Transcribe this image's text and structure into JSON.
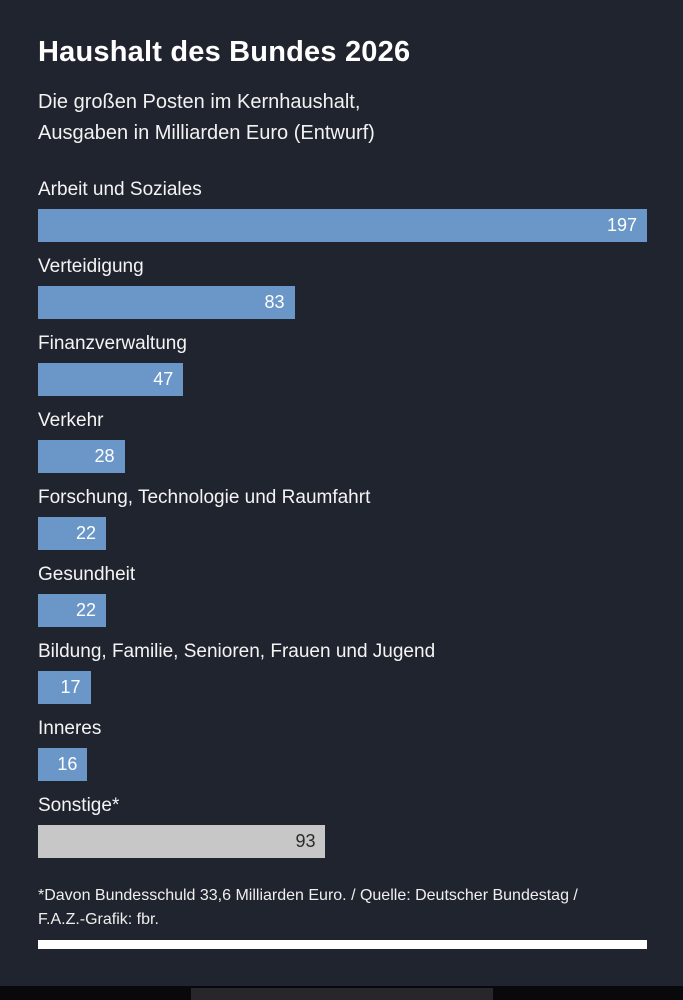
{
  "colors": {
    "background": "#20242e",
    "bar_blue": "#6a96c8",
    "bar_gray": "#c7c7c7",
    "value_on_blue": "#ffffff",
    "value_on_gray": "#2b2b2b",
    "text": "#f4f4f4",
    "bottom_strip": "#ffffff"
  },
  "chart_data": {
    "type": "bar",
    "orientation": "horizontal",
    "title": "Haushalt des Bundes 2026",
    "subtitle_lines": [
      "Die großen Posten im Kernhaushalt,",
      "Ausgaben in Milliarden Euro (Entwurf)"
    ],
    "categories": [
      "Arbeit und Soziales",
      "Verteidigung",
      "Finanzverwaltung",
      "Verkehr",
      "Forschung, Technologie und Raumfahrt",
      "Gesundheit",
      "Bildung, Familie, Senioren, Frauen und Jugend",
      "Inneres",
      "Sonstige*"
    ],
    "values": [
      197,
      83,
      47,
      28,
      22,
      22,
      17,
      16,
      93
    ],
    "bar_color_keys": [
      "blue",
      "blue",
      "blue",
      "blue",
      "blue",
      "blue",
      "blue",
      "blue",
      "gray"
    ],
    "xlim": [
      0,
      197
    ],
    "grid": false,
    "legend": "none",
    "footnote": "*Davon Bundesschuld 33,6 Milliarden Euro.  /  Quelle: Deutscher Bundestag / F.A.Z.-Grafik: fbr."
  }
}
